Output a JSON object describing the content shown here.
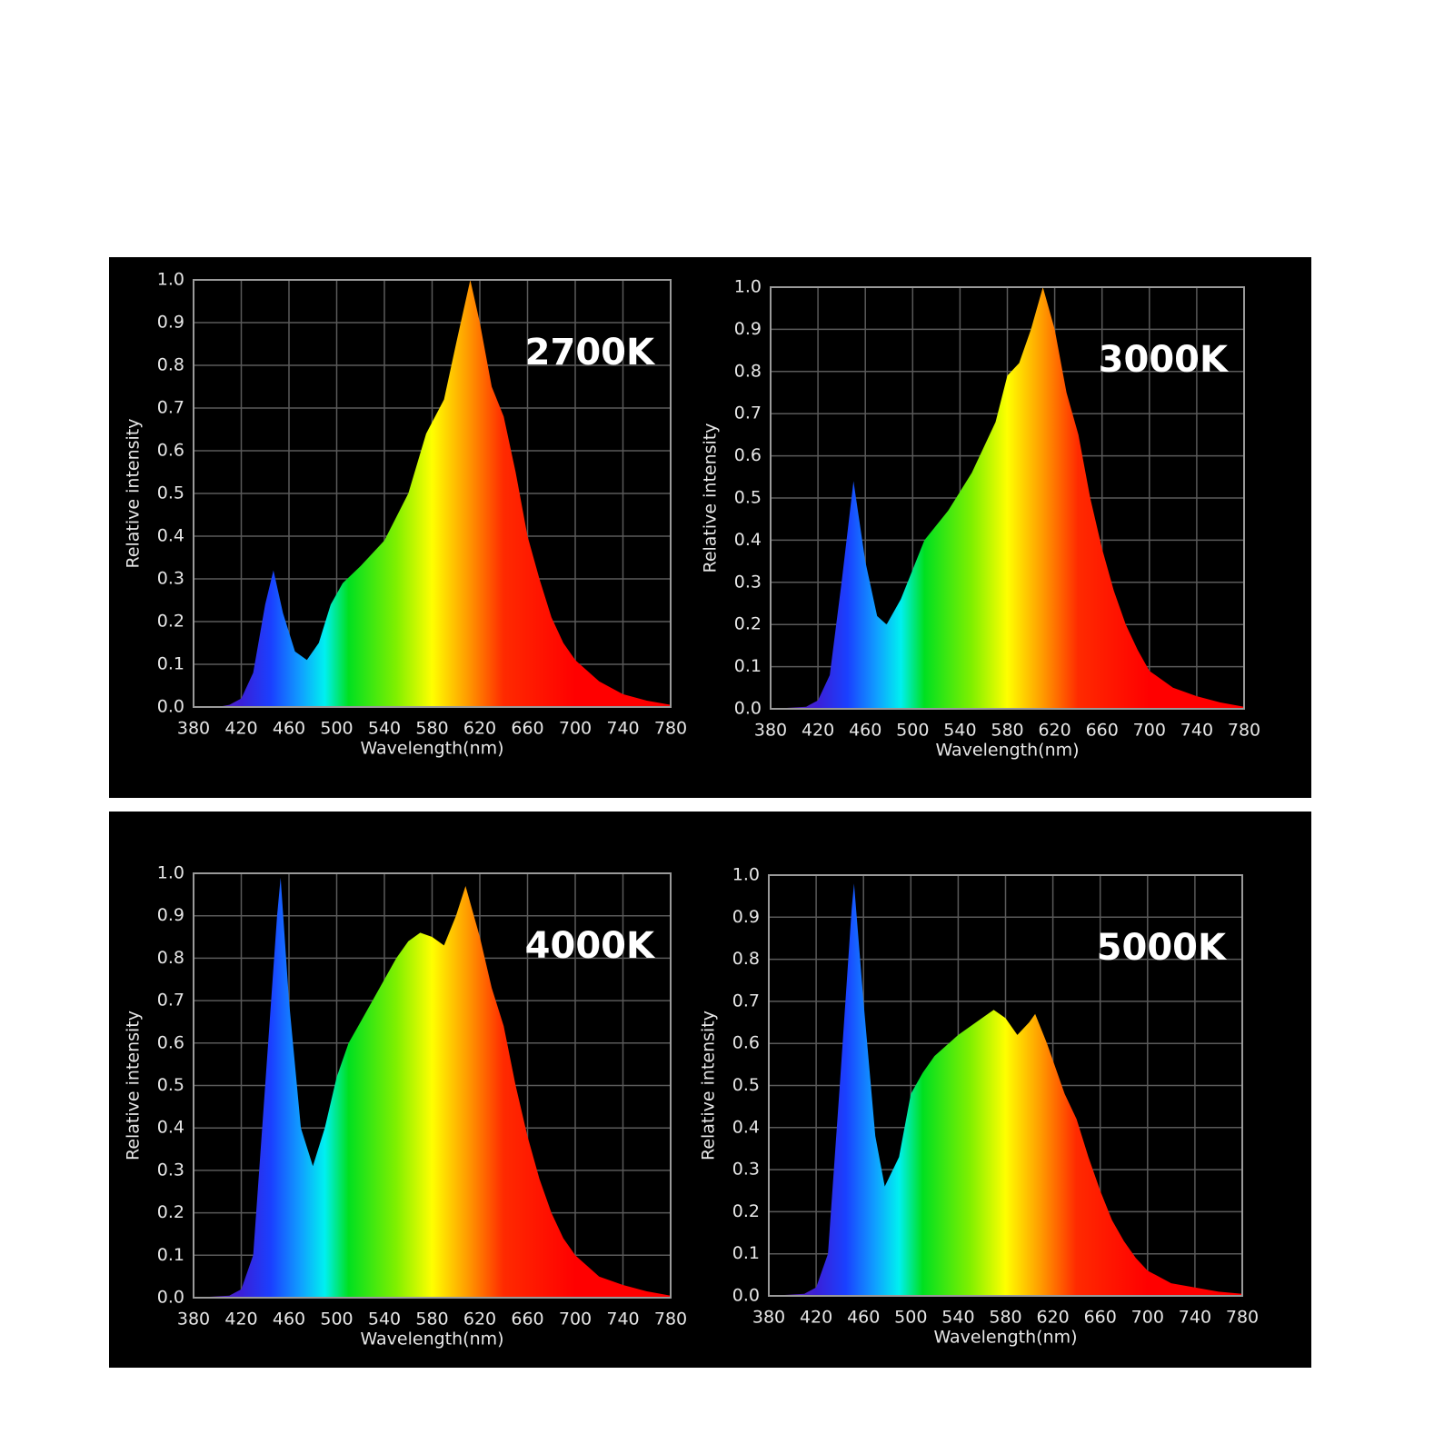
{
  "chart_data": [
    {
      "type": "area",
      "title": "2700K",
      "xlabel": "Wavelength(nm)",
      "ylabel": "Relative intensity",
      "x": [
        380,
        400,
        410,
        420,
        430,
        440,
        447,
        455,
        465,
        475,
        485,
        495,
        505,
        520,
        540,
        560,
        575,
        590,
        600,
        612,
        620,
        630,
        640,
        650,
        660,
        670,
        680,
        690,
        700,
        720,
        740,
        760,
        780
      ],
      "values": [
        0,
        0,
        0.005,
        0.02,
        0.08,
        0.24,
        0.32,
        0.22,
        0.13,
        0.11,
        0.15,
        0.24,
        0.29,
        0.33,
        0.39,
        0.5,
        0.64,
        0.72,
        0.85,
        1.0,
        0.9,
        0.75,
        0.68,
        0.55,
        0.4,
        0.3,
        0.21,
        0.15,
        0.11,
        0.06,
        0.03,
        0.015,
        0.005
      ],
      "xlim": [
        380,
        780
      ],
      "xticks": [
        380,
        420,
        460,
        500,
        540,
        580,
        620,
        660,
        700,
        740,
        780
      ],
      "ylim": [
        0,
        1
      ],
      "yticks": [
        {
          "value": 0,
          "label": "0.0"
        },
        0.1,
        0.2,
        0.3,
        0.4,
        0.5,
        0.6,
        0.7,
        0.8,
        0.9,
        {
          "value": 1,
          "label": "1.0"
        }
      ],
      "grid": true
    },
    {
      "type": "area",
      "title": "3000K",
      "xlabel": "Wavelength(nm)",
      "ylabel": "Relative intensity",
      "x": [
        380,
        410,
        420,
        430,
        440,
        450,
        460,
        470,
        478,
        490,
        500,
        510,
        530,
        550,
        570,
        580,
        590,
        600,
        610,
        620,
        630,
        640,
        650,
        660,
        670,
        680,
        690,
        700,
        720,
        740,
        760,
        780
      ],
      "values": [
        0,
        0.005,
        0.02,
        0.08,
        0.3,
        0.54,
        0.35,
        0.22,
        0.2,
        0.26,
        0.33,
        0.4,
        0.47,
        0.56,
        0.68,
        0.79,
        0.82,
        0.9,
        1.0,
        0.9,
        0.75,
        0.65,
        0.5,
        0.38,
        0.28,
        0.2,
        0.14,
        0.09,
        0.05,
        0.03,
        0.015,
        0.005
      ],
      "xlim": [
        380,
        780
      ],
      "xticks": [
        380,
        420,
        460,
        500,
        540,
        580,
        620,
        660,
        700,
        740,
        780
      ],
      "ylim": [
        0,
        1
      ],
      "yticks": [
        {
          "value": 0,
          "label": "0.0"
        },
        0.1,
        0.2,
        0.3,
        0.4,
        0.5,
        0.6,
        0.7,
        0.8,
        0.9,
        {
          "value": 1,
          "label": "1.0"
        }
      ],
      "grid": true
    },
    {
      "type": "area",
      "title": "4000K",
      "xlabel": "Wavelength(nm)",
      "ylabel": "Relative intensity",
      "x": [
        380,
        410,
        420,
        430,
        440,
        450,
        453,
        460,
        470,
        480,
        490,
        500,
        510,
        520,
        530,
        540,
        550,
        560,
        570,
        580,
        590,
        600,
        608,
        620,
        630,
        640,
        650,
        660,
        670,
        680,
        690,
        700,
        720,
        740,
        760,
        780
      ],
      "values": [
        0,
        0.005,
        0.02,
        0.1,
        0.5,
        0.9,
        0.99,
        0.7,
        0.4,
        0.31,
        0.4,
        0.52,
        0.6,
        0.65,
        0.7,
        0.75,
        0.8,
        0.84,
        0.86,
        0.85,
        0.83,
        0.9,
        0.97,
        0.85,
        0.73,
        0.64,
        0.5,
        0.38,
        0.28,
        0.2,
        0.14,
        0.1,
        0.05,
        0.03,
        0.015,
        0.005
      ],
      "xlim": [
        380,
        780
      ],
      "xticks": [
        380,
        420,
        460,
        500,
        540,
        580,
        620,
        660,
        700,
        740,
        780
      ],
      "ylim": [
        0,
        1
      ],
      "yticks": [
        {
          "value": 0,
          "label": "0.0"
        },
        0.1,
        0.2,
        0.3,
        0.4,
        0.5,
        0.6,
        0.7,
        0.8,
        0.9,
        {
          "value": 1,
          "label": "1.0"
        }
      ],
      "grid": true
    },
    {
      "type": "area",
      "title": "5000K",
      "xlabel": "Wavelength(nm)",
      "ylabel": "Relative intensity",
      "x": [
        380,
        410,
        420,
        430,
        440,
        450,
        452,
        460,
        470,
        478,
        490,
        500,
        510,
        520,
        540,
        560,
        570,
        580,
        590,
        600,
        605,
        615,
        630,
        640,
        650,
        660,
        670,
        680,
        690,
        700,
        720,
        740,
        760,
        780
      ],
      "values": [
        0,
        0.005,
        0.02,
        0.1,
        0.5,
        0.92,
        0.98,
        0.7,
        0.38,
        0.26,
        0.33,
        0.48,
        0.53,
        0.57,
        0.62,
        0.66,
        0.68,
        0.66,
        0.62,
        0.65,
        0.67,
        0.6,
        0.48,
        0.42,
        0.33,
        0.25,
        0.18,
        0.13,
        0.09,
        0.06,
        0.03,
        0.02,
        0.01,
        0.005
      ],
      "xlim": [
        380,
        780
      ],
      "xticks": [
        380,
        420,
        460,
        500,
        540,
        580,
        620,
        660,
        700,
        740,
        780
      ],
      "ylim": [
        0,
        1
      ],
      "yticks": [
        {
          "value": 0,
          "label": "0.0"
        },
        0.1,
        0.2,
        0.3,
        0.4,
        0.5,
        0.6,
        0.7,
        0.8,
        0.9,
        {
          "value": 1,
          "label": "1.0"
        }
      ],
      "grid": true
    }
  ]
}
